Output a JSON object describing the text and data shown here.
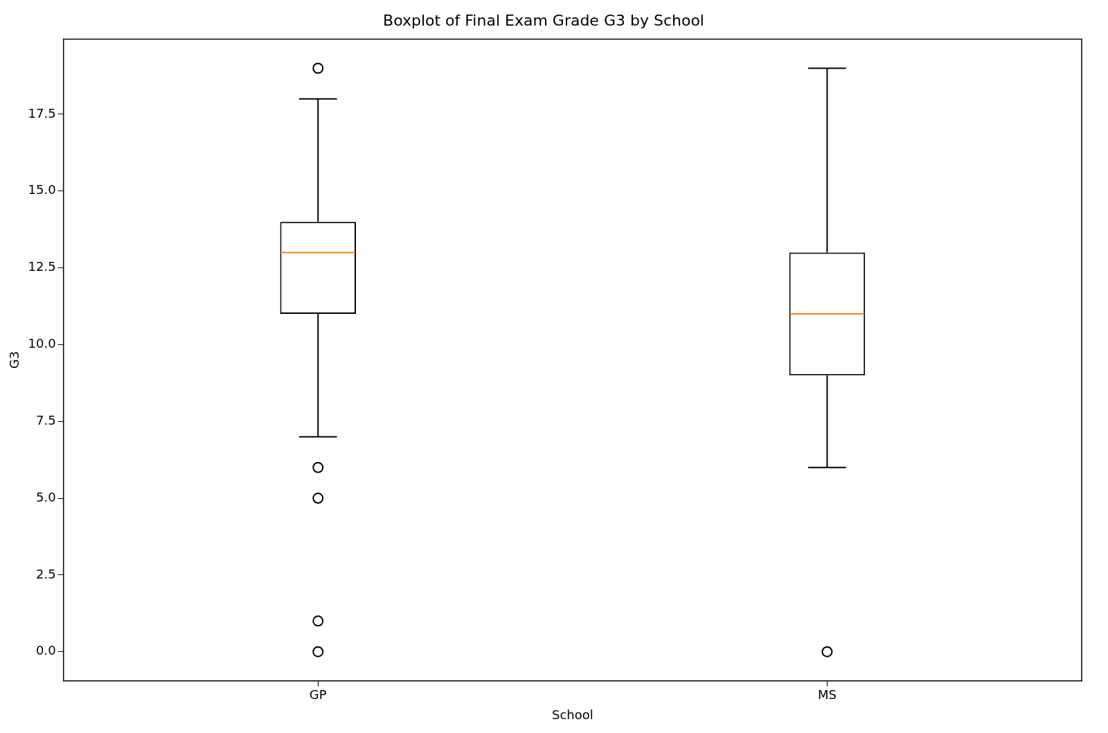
{
  "chart_data": {
    "type": "box",
    "title": "Boxplot of Final Exam Grade G3 by School",
    "xlabel": "School",
    "ylabel": "G3",
    "categories": [
      "GP",
      "MS"
    ],
    "boxes": [
      {
        "low": 7,
        "q1": 11,
        "median": 13,
        "q3": 14,
        "high": 18,
        "outliers": [
          0,
          1,
          5,
          6,
          19
        ]
      },
      {
        "low": 6,
        "q1": 9,
        "median": 11,
        "q3": 13,
        "high": 19,
        "outliers": [
          0
        ]
      }
    ],
    "ylim": [
      -0.95,
      19.95
    ],
    "yticks": [
      {
        "value": 0,
        "label": "0.0"
      },
      {
        "value": 2.5,
        "label": "2.5"
      },
      {
        "value": 5,
        "label": "5.0"
      },
      {
        "value": 7.5,
        "label": "7.5"
      },
      {
        "value": 10,
        "label": "10.0"
      },
      {
        "value": 12.5,
        "label": "12.5"
      },
      {
        "value": 15,
        "label": "15.0"
      },
      {
        "value": 17.5,
        "label": "17.5"
      }
    ]
  }
}
